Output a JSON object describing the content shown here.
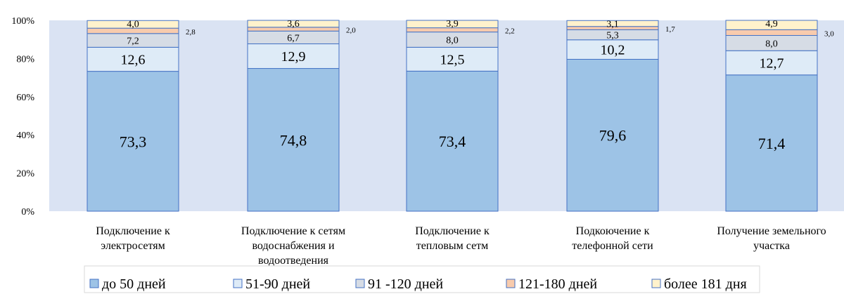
{
  "chart_data": {
    "type": "bar",
    "stacked": true,
    "title": "",
    "categories": [
      [
        "Подключение к",
        "электросетям"
      ],
      [
        "Подключение к сетям",
        "водоснабжения и",
        "водоотведения"
      ],
      [
        "Подключение к",
        "тепловым сетм"
      ],
      [
        "Подкоючение к",
        "телефонной сети"
      ],
      [
        "Получение земельного",
        "участка"
      ]
    ],
    "series": [
      {
        "name": "до 50 дней",
        "color": "#9dc3e6",
        "values": [
          73.3,
          74.8,
          73.4,
          79.6,
          71.4
        ],
        "labels": [
          "73,3",
          "74,8",
          "73,4",
          "79,6",
          "71,4"
        ]
      },
      {
        "name": "51-90 дней",
        "color": "#deebf7",
        "values": [
          12.6,
          12.9,
          12.5,
          10.2,
          12.7
        ],
        "labels": [
          "12,6",
          "12,9",
          "12,5",
          "10,2",
          "12,7"
        ]
      },
      {
        "name": "91 -120 дней",
        "color": "#d6dce5",
        "values": [
          7.2,
          6.7,
          8.0,
          5.3,
          8.0
        ],
        "labels": [
          "7,2",
          "6,7",
          "8,0",
          "5,3",
          "8,0"
        ]
      },
      {
        "name": "121-180 дней",
        "color": "#f8cbad",
        "values": [
          2.8,
          2.0,
          2.2,
          1.7,
          3.0
        ],
        "labels": [
          "2,8",
          "2,0",
          "2,2",
          "1,7",
          "3,0"
        ]
      },
      {
        "name": "более 181 дня",
        "color": "#fff2cc",
        "values": [
          4.0,
          3.6,
          3.9,
          3.1,
          4.9
        ],
        "labels": [
          "4,0",
          "3,6",
          "3,9",
          "3,1",
          "4,9"
        ]
      }
    ],
    "yticks": [
      "0%",
      "20%",
      "40%",
      "60%",
      "80%",
      "100%"
    ],
    "ylim": [
      0,
      100
    ],
    "grid": false,
    "legend_position": "bottom",
    "plot_background": "#dae3f3",
    "bar_edge_color": "#4472c4"
  }
}
